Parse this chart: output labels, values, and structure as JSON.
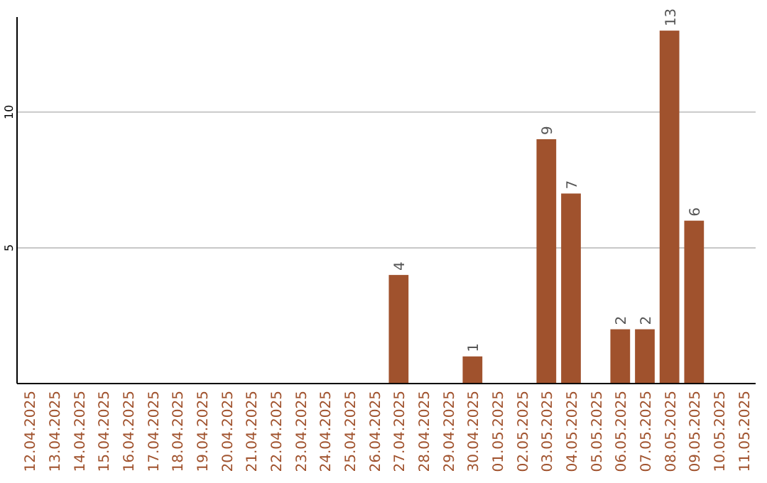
{
  "chart_data": {
    "type": "bar",
    "categories": [
      "12.04.2025",
      "13.04.2025",
      "14.04.2025",
      "15.04.2025",
      "16.04.2025",
      "17.04.2025",
      "18.04.2025",
      "19.04.2025",
      "20.04.2025",
      "21.04.2025",
      "22.04.2025",
      "23.04.2025",
      "24.04.2025",
      "25.04.2025",
      "26.04.2025",
      "27.04.2025",
      "28.04.2025",
      "29.04.2025",
      "30.04.2025",
      "01.05.2025",
      "02.05.2025",
      "03.05.2025",
      "04.05.2025",
      "05.05.2025",
      "06.05.2025",
      "07.05.2025",
      "08.05.2025",
      "09.05.2025",
      "10.05.2025",
      "11.05.2025"
    ],
    "values": [
      0,
      0,
      0,
      0,
      0,
      0,
      0,
      0,
      0,
      0,
      0,
      0,
      0,
      0,
      0,
      4,
      0,
      0,
      1,
      0,
      0,
      9,
      7,
      0,
      2,
      2,
      13,
      6,
      0,
      0
    ],
    "value_labels": [
      null,
      null,
      null,
      null,
      null,
      null,
      null,
      null,
      null,
      null,
      null,
      null,
      null,
      null,
      null,
      "4",
      null,
      null,
      "1",
      null,
      null,
      "9",
      "7",
      null,
      "2",
      "2",
      "13",
      "6",
      null,
      null
    ],
    "color": "#a0522d",
    "ylim": [
      0,
      13.5
    ],
    "yticks": [
      5,
      10
    ],
    "grid": "y"
  }
}
